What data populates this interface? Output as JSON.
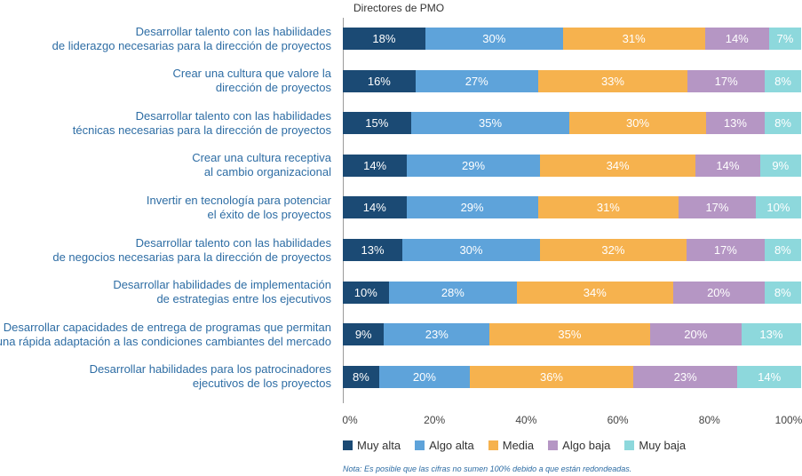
{
  "chart_data": {
    "type": "bar",
    "orientation": "horizontal-stacked-100",
    "subtitle": "Directores de PMO",
    "categories": [
      "Desarrollar talento con las habilidades\nde liderazgo necesarias para la dirección de proyectos",
      "Crear una cultura que valore la\ndirección de proyectos",
      "Desarrollar talento con las habilidades\ntécnicas necesarias para la dirección de proyectos",
      "Crear una cultura receptiva\nal cambio organizacional",
      "Invertir en tecnología para potenciar\nel éxito de los proyectos",
      "Desarrollar talento con las habilidades\nde negocios necesarias para la dirección de proyectos",
      "Desarrollar habilidades de implementación\nde estrategias entre los ejecutivos",
      "Desarrollar capacidades de entrega de programas que permitan\nuna rápida adaptación a las condiciones cambiantes del mercado",
      "Desarrollar habilidades para los patrocinadores\nejecutivos de los proyectos"
    ],
    "series": [
      {
        "name": "Muy alta",
        "color": "#1b4a74",
        "text_color": "#ffffff",
        "values": [
          18,
          16,
          15,
          14,
          14,
          13,
          10,
          9,
          8
        ]
      },
      {
        "name": "Algo alta",
        "color": "#5ea3da",
        "text_color": "#ffffff",
        "values": [
          30,
          27,
          35,
          29,
          29,
          30,
          28,
          23,
          20
        ]
      },
      {
        "name": "Media",
        "color": "#f6b24e",
        "text_color": "#ffffff",
        "values": [
          31,
          33,
          30,
          34,
          31,
          32,
          34,
          35,
          36
        ]
      },
      {
        "name": "Algo baja",
        "color": "#b596c4",
        "text_color": "#ffffff",
        "values": [
          14,
          17,
          13,
          14,
          17,
          17,
          20,
          20,
          23
        ]
      },
      {
        "name": "Muy baja",
        "color": "#8dd8dc",
        "text_color": "#ffffff",
        "values": [
          7,
          8,
          8,
          9,
          10,
          8,
          8,
          13,
          14
        ]
      }
    ],
    "xlim": [
      0,
      100
    ],
    "ticks": [
      "0%",
      "20%",
      "40%",
      "60%",
      "80%",
      "100%"
    ],
    "tick_values": [
      0,
      20,
      40,
      60,
      80,
      100
    ],
    "value_suffix": "%",
    "legend_position": "bottom",
    "note": "Nota: Es posible que las cifras no sumen 100% debido a que están redondeadas."
  }
}
